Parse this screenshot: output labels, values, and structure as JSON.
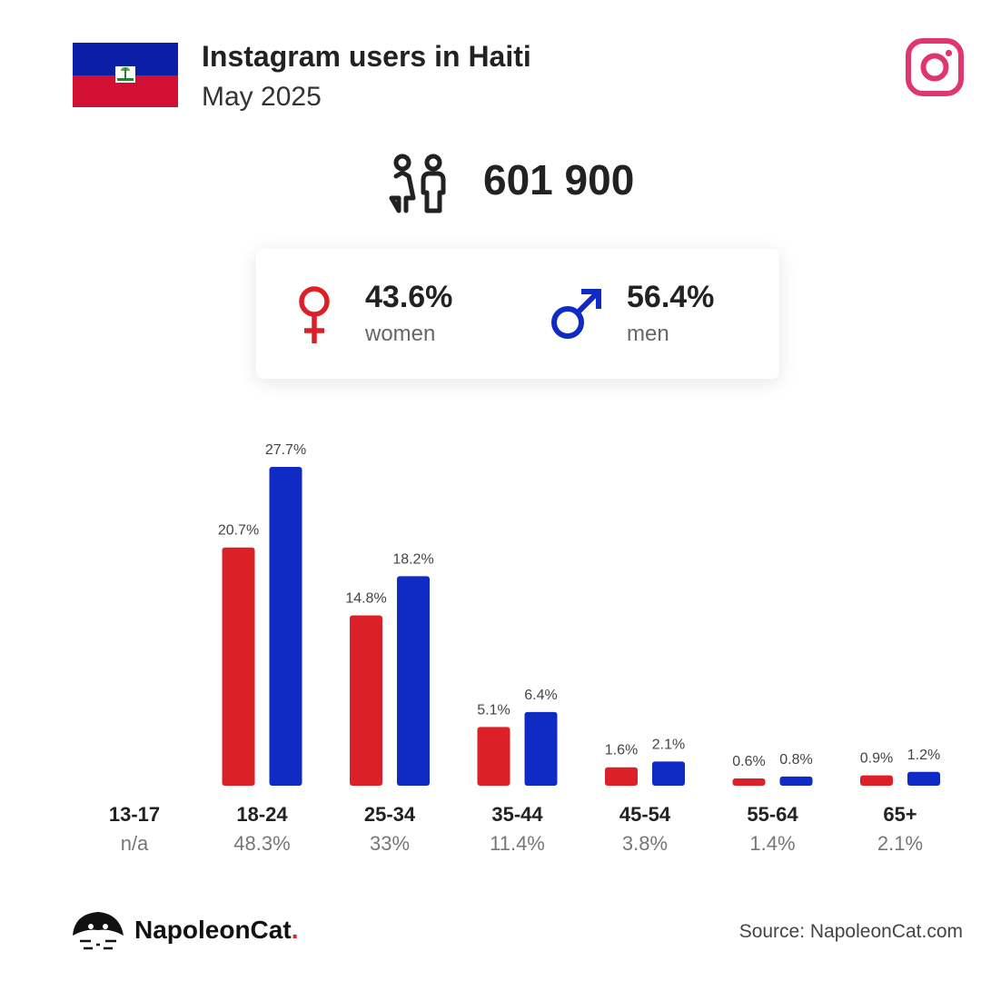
{
  "header": {
    "title": "Instagram users in Haiti",
    "subtitle": "May 2025"
  },
  "colors": {
    "women": "#dc2027",
    "men": "#0f2bc4",
    "instagram": "#e0366d",
    "flag_blue": "#0b1ea8",
    "flag_red": "#d21034"
  },
  "total_users": "601 900",
  "gender": {
    "women_pct": "43.6%",
    "women_label": "women",
    "men_pct": "56.4%",
    "men_label": "men"
  },
  "chart_data": {
    "type": "bar",
    "categories": [
      "13-17",
      "18-24",
      "25-34",
      "35-44",
      "45-54",
      "55-64",
      "65+"
    ],
    "category_totals": [
      "n/a",
      "48.3%",
      "33%",
      "11.4%",
      "3.8%",
      "1.4%",
      "2.1%"
    ],
    "series": [
      {
        "values": [
          null,
          20.7,
          14.8,
          5.1,
          1.6,
          0.6,
          0.9
        ],
        "labels": [
          "",
          "20.7%",
          "14.8%",
          "5.1%",
          "1.6%",
          "0.6%",
          "0.9%"
        ]
      },
      {
        "values": [
          null,
          27.7,
          18.2,
          6.4,
          2.1,
          0.8,
          1.2
        ],
        "labels": [
          "",
          "27.7%",
          "18.2%",
          "6.4%",
          "2.1%",
          "0.8%",
          "1.2%"
        ]
      }
    ],
    "ylim": [
      0,
      27.7
    ]
  },
  "footer": {
    "brand": "NapoleonCat",
    "brand_dot": ".",
    "source": "Source: NapoleonCat.com"
  }
}
